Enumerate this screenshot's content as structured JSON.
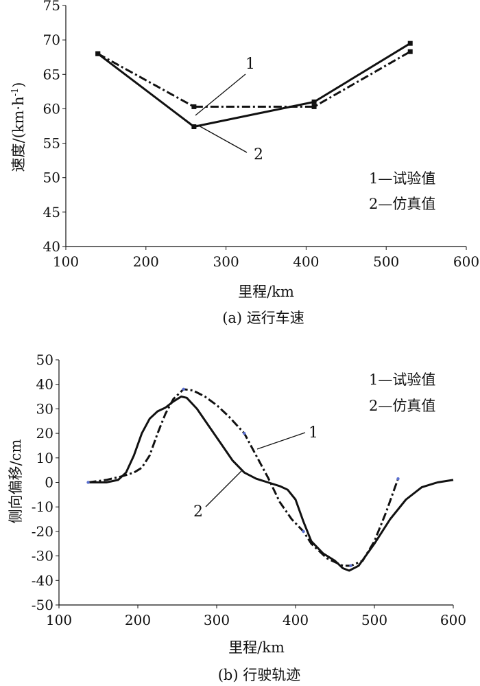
{
  "chart_data": [
    {
      "type": "line",
      "caption": "(a) 运行车速",
      "xlabel": "里程/km",
      "ylabel_main": "速度/(km·h",
      "ylabel_sup": "-1",
      "ylabel_close": ")",
      "xlim": [
        100,
        600
      ],
      "ylim": [
        40,
        75
      ],
      "xticks": [
        "100",
        "200",
        "300",
        "400",
        "500",
        "600"
      ],
      "yticks": [
        "40",
        "45",
        "50",
        "55",
        "60",
        "65",
        "70",
        "75"
      ],
      "legend": [
        "1—试验值",
        "2—仿真值"
      ],
      "callouts": [
        "1",
        "2"
      ],
      "series": [
        {
          "id": "1",
          "style": "dash-dot",
          "x": [
            140,
            260,
            410,
            530
          ],
          "y": [
            68.0,
            60.3,
            60.3,
            68.3
          ]
        },
        {
          "id": "2",
          "style": "solid",
          "x": [
            140,
            260,
            410,
            530
          ],
          "y": [
            68.0,
            57.4,
            61.0,
            69.5
          ]
        }
      ]
    },
    {
      "type": "line",
      "caption": "(b) 行驶轨迹",
      "xlabel": "里程/km",
      "ylabel": "侧向偏移/cm",
      "xlim": [
        100,
        600
      ],
      "ylim": [
        -50,
        50
      ],
      "xticks": [
        "100",
        "200",
        "300",
        "400",
        "500",
        "600"
      ],
      "yticks": [
        "-50",
        "-40",
        "-30",
        "-20",
        "-10",
        "0",
        "10",
        "20",
        "30",
        "40",
        "50"
      ],
      "legend": [
        "1—试验值",
        "2—仿真值"
      ],
      "callouts": [
        "1",
        "2"
      ],
      "series": [
        {
          "id": "1",
          "style": "dash-dot",
          "x": [
            137,
            160,
            180,
            195,
            205,
            215,
            225,
            235,
            245,
            258,
            270,
            285,
            300,
            315,
            335,
            350,
            365,
            380,
            395,
            410,
            420,
            440,
            460,
            470,
            485,
            500,
            515,
            530
          ],
          "y": [
            0,
            1,
            2.5,
            4,
            6,
            11,
            20,
            28,
            34,
            38,
            37.5,
            35,
            31.5,
            27,
            20,
            11,
            2,
            -8,
            -15,
            -20,
            -25,
            -31,
            -34,
            -34,
            -32,
            -24,
            -12,
            1.5
          ]
        },
        {
          "id": "2",
          "style": "solid",
          "x": [
            137,
            160,
            175,
            185,
            195,
            205,
            215,
            225,
            235,
            245,
            255,
            262,
            275,
            290,
            305,
            320,
            335,
            350,
            365,
            380,
            390,
            400,
            410,
            420,
            435,
            450,
            460,
            468,
            480,
            500,
            520,
            540,
            560,
            580,
            600
          ],
          "y": [
            0,
            0,
            1,
            4,
            11,
            20,
            26,
            29,
            30.5,
            33,
            35,
            34.5,
            30,
            23,
            16,
            9,
            4,
            1.5,
            0,
            -1.5,
            -3,
            -7,
            -16,
            -24,
            -29,
            -32,
            -35,
            -36,
            -34,
            -25,
            -15,
            -7,
            -2,
            0,
            1
          ]
        }
      ]
    }
  ]
}
